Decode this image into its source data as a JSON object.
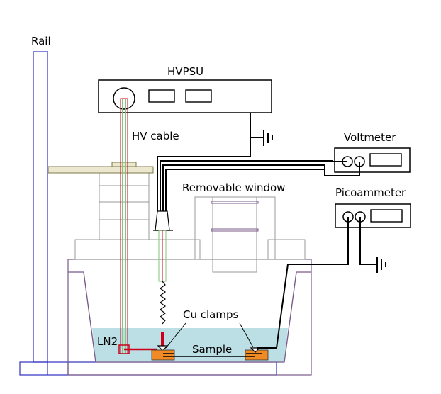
{
  "labels": {
    "rail": "Rail",
    "hvpsu": "HVPSU",
    "hv_cable": "HV cable",
    "voltmeter": "Voltmeter",
    "picoammeter": "Picoammeter",
    "removable_window": "Removable window",
    "cu_clamps": "Cu clamps",
    "ln2": "LN2",
    "sample": "Sample"
  },
  "colors": {
    "frame_blue": "#3030c0",
    "wall_purple": "#7a5a8a",
    "ln2_fill": "#bcdfe6",
    "copper": "#f08a24",
    "hv_red": "#cc0018",
    "hv_green": "#7fc77f",
    "plate_olive": "#7e7a48",
    "plate_fill": "#ece8d0",
    "cable_black": "#000000",
    "box_gray": "#9a9a9a"
  }
}
